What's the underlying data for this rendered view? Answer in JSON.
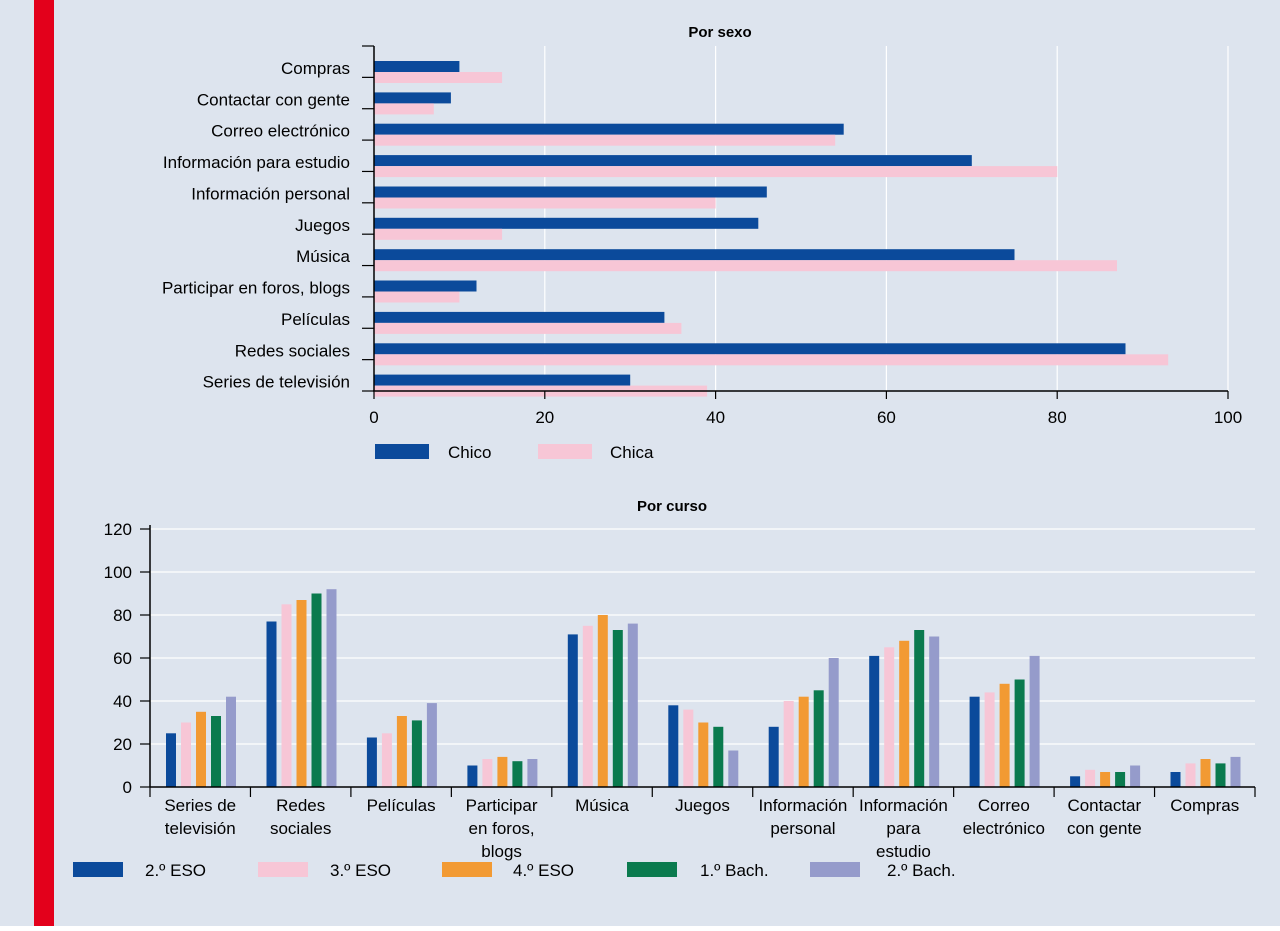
{
  "colors": {
    "sidebar": "#e3001b",
    "background": "#dde4ee",
    "grid": "#ffffff",
    "axis": "#000000",
    "chico": "#0b4a9b",
    "chica": "#f7c6d6",
    "eso2": "#0b4a9b",
    "eso3": "#f7c6d6",
    "eso4": "#f29a33",
    "bach1": "#0a7a4e",
    "bach2": "#959bcb"
  },
  "chart_data": [
    {
      "type": "bar",
      "orientation": "horizontal",
      "title": "Por sexo",
      "categories": [
        "Compras",
        "Contactar con gente",
        "Correo electrónico",
        "Información para estudio",
        "Información personal",
        "Juegos",
        "Música",
        "Participar en foros, blogs",
        "Películas",
        "Redes sociales",
        "Series de televisión"
      ],
      "series": [
        {
          "name": "Chico",
          "values": [
            10,
            9,
            55,
            70,
            46,
            45,
            75,
            12,
            34,
            88,
            30
          ]
        },
        {
          "name": "Chica",
          "values": [
            15,
            7,
            54,
            80,
            40,
            15,
            87,
            10,
            36,
            93,
            39
          ]
        }
      ],
      "xlim": [
        0,
        100
      ],
      "xticks": [
        "0",
        "20",
        "40",
        "60",
        "80",
        "100"
      ],
      "grid": true,
      "legend": "bottom"
    },
    {
      "type": "bar",
      "orientation": "vertical",
      "title": "Por curso",
      "categories": [
        [
          "Series de",
          "televisión"
        ],
        [
          "Redes",
          "sociales"
        ],
        [
          "Películas"
        ],
        [
          "Participar",
          "en foros,",
          "blogs"
        ],
        [
          "Música"
        ],
        [
          "Juegos"
        ],
        [
          "Información",
          "personal"
        ],
        [
          "Información",
          "para",
          "estudio"
        ],
        [
          "Correo",
          "electrónico"
        ],
        [
          "Contactar",
          "con gente"
        ],
        [
          "Compras"
        ]
      ],
      "series": [
        {
          "name": "2.º ESO",
          "values": [
            25,
            77,
            23,
            10,
            71,
            38,
            28,
            61,
            42,
            5,
            7
          ]
        },
        {
          "name": "3.º ESO",
          "values": [
            30,
            85,
            25,
            13,
            75,
            36,
            40,
            65,
            44,
            8,
            11
          ]
        },
        {
          "name": "4.º ESO",
          "values": [
            35,
            87,
            33,
            14,
            80,
            30,
            42,
            68,
            48,
            7,
            13
          ]
        },
        {
          "name": "1.º Bach.",
          "values": [
            33,
            90,
            31,
            12,
            73,
            28,
            45,
            73,
            50,
            7,
            11
          ]
        },
        {
          "name": "2.º Bach.",
          "values": [
            42,
            92,
            39,
            13,
            76,
            17,
            60,
            70,
            61,
            10,
            14
          ]
        }
      ],
      "ylim": [
        0,
        120
      ],
      "yticks": [
        "0",
        "20",
        "40",
        "60",
        "80",
        "100",
        "120"
      ],
      "grid": true,
      "legend": "bottom"
    }
  ]
}
